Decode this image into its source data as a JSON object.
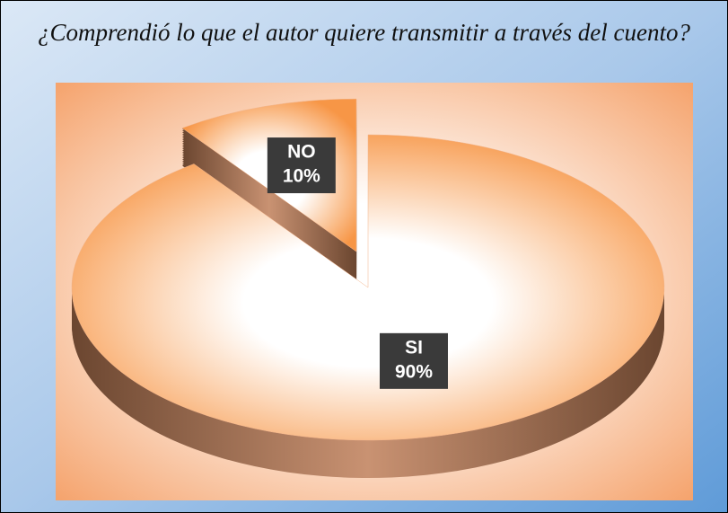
{
  "chart_data": {
    "type": "pie",
    "title": "¿Comprendió lo que el autor quiere transmitir a través del cuento?",
    "categories": [
      "NO",
      "SI"
    ],
    "values": [
      10,
      90
    ],
    "value_labels": [
      "10%",
      "90%"
    ],
    "color": "#f79646",
    "exploded": "NO"
  }
}
